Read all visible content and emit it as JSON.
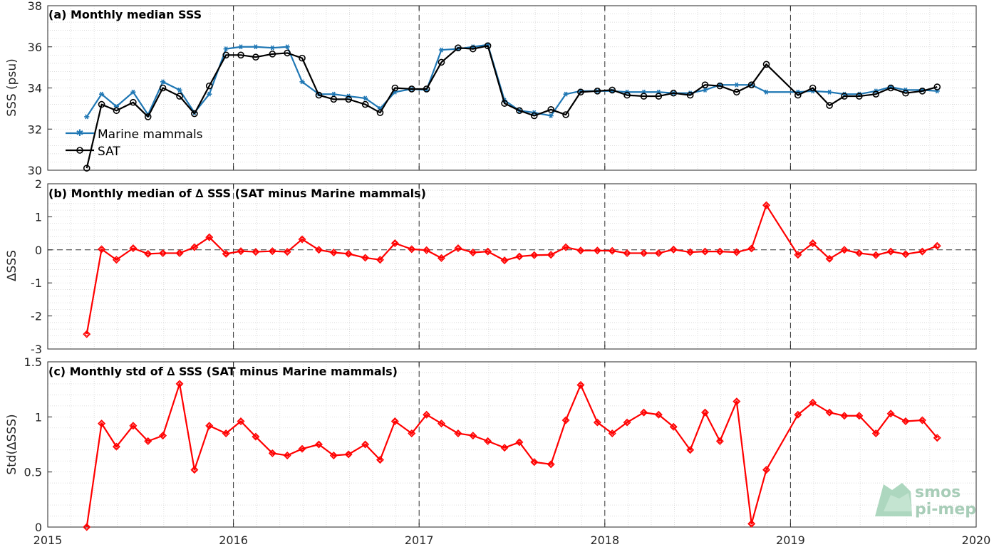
{
  "colors": {
    "marine": "#1f77b4",
    "sat": "#000000",
    "delta": "#ff0000"
  },
  "logo": {
    "line1": "smos",
    "line2": "pi-mep"
  },
  "x_ticks": [
    "2015",
    "2016",
    "2017",
    "2018",
    "2019",
    "2020"
  ],
  "chart_data": [
    {
      "type": "line",
      "title": "(a) Monthly median SSS",
      "ylabel": "SSS (psu)",
      "xlim": [
        2015,
        2020
      ],
      "ylim": [
        30,
        38
      ],
      "y_ticks": [
        "30",
        "32",
        "34",
        "36",
        "38"
      ],
      "grid": true,
      "legend_position": "lower-left",
      "x": [
        2015.21,
        2015.29,
        2015.37,
        2015.46,
        2015.54,
        2015.62,
        2015.71,
        2015.79,
        2015.87,
        2015.96,
        2016.04,
        2016.12,
        2016.21,
        2016.29,
        2016.37,
        2016.46,
        2016.54,
        2016.62,
        2016.71,
        2016.79,
        2016.87,
        2016.96,
        2017.04,
        2017.12,
        2017.21,
        2017.29,
        2017.37,
        2017.46,
        2017.54,
        2017.62,
        2017.71,
        2017.79,
        2017.87,
        2017.96,
        2018.04,
        2018.12,
        2018.21,
        2018.29,
        2018.37,
        2018.46,
        2018.54,
        2018.62,
        2018.71,
        2018.79,
        2018.87,
        2019.04,
        2019.12,
        2019.21,
        2019.29,
        2019.37,
        2019.46,
        2019.54,
        2019.62,
        2019.71,
        2019.79
      ],
      "series": [
        {
          "name": "Marine mammals",
          "values": [
            32.6,
            33.7,
            33.1,
            33.8,
            32.7,
            34.3,
            33.9,
            32.8,
            33.7,
            35.9,
            36.0,
            36.0,
            35.95,
            36.0,
            34.3,
            33.7,
            33.7,
            33.6,
            33.5,
            33.0,
            33.8,
            33.95,
            33.9,
            35.85,
            35.9,
            36.0,
            36.1,
            33.4,
            32.9,
            32.8,
            32.65,
            33.7,
            33.85,
            33.85,
            33.85,
            33.8,
            33.8,
            33.8,
            33.75,
            33.75,
            33.9,
            34.15,
            34.15,
            34.15,
            33.8,
            33.8,
            33.85,
            33.8,
            33.7,
            33.7,
            33.85,
            34.05,
            33.9,
            33.9,
            33.85
          ]
        },
        {
          "name": "SAT",
          "values": [
            30.1,
            33.2,
            32.9,
            33.3,
            32.6,
            34.0,
            33.6,
            32.75,
            34.1,
            35.6,
            35.6,
            35.5,
            35.65,
            35.7,
            35.45,
            33.65,
            33.45,
            33.45,
            33.2,
            32.8,
            34.0,
            33.95,
            33.95,
            35.25,
            35.95,
            35.9,
            36.05,
            33.25,
            32.9,
            32.65,
            32.95,
            32.7,
            33.8,
            33.85,
            33.9,
            33.65,
            33.6,
            33.6,
            33.75,
            33.65,
            34.15,
            34.1,
            33.8,
            34.15,
            35.15,
            33.65,
            34.0,
            33.15,
            33.6,
            33.6,
            33.7,
            34.0,
            33.75,
            33.85,
            34.05
          ]
        }
      ]
    },
    {
      "type": "line",
      "title": "(b) Monthly median of ∆ SSS (SAT minus Marine mammals)",
      "ylabel": "∆SSS",
      "xlim": [
        2015,
        2020
      ],
      "ylim": [
        -3,
        2
      ],
      "y_ticks": [
        "-3",
        "-2",
        "-1",
        "0",
        "1",
        "2"
      ],
      "grid": true,
      "reference_line": 0,
      "x": [
        2015.21,
        2015.29,
        2015.37,
        2015.46,
        2015.54,
        2015.62,
        2015.71,
        2015.79,
        2015.87,
        2015.96,
        2016.04,
        2016.12,
        2016.21,
        2016.29,
        2016.37,
        2016.46,
        2016.54,
        2016.62,
        2016.71,
        2016.79,
        2016.87,
        2016.96,
        2017.04,
        2017.12,
        2017.21,
        2017.29,
        2017.37,
        2017.46,
        2017.54,
        2017.62,
        2017.71,
        2017.79,
        2017.87,
        2017.96,
        2018.04,
        2018.12,
        2018.21,
        2018.29,
        2018.37,
        2018.46,
        2018.54,
        2018.62,
        2018.71,
        2018.79,
        2018.87,
        2019.04,
        2019.12,
        2019.21,
        2019.29,
        2019.37,
        2019.46,
        2019.54,
        2019.62,
        2019.71,
        2019.79
      ],
      "series": [
        {
          "name": "",
          "values": [
            -2.55,
            0.02,
            -0.3,
            0.05,
            -0.12,
            -0.1,
            -0.1,
            0.08,
            0.38,
            -0.12,
            -0.04,
            -0.06,
            -0.04,
            -0.06,
            0.32,
            0.0,
            -0.08,
            -0.12,
            -0.24,
            -0.3,
            0.2,
            0.02,
            -0.01,
            -0.25,
            0.05,
            -0.08,
            -0.05,
            -0.32,
            -0.2,
            -0.16,
            -0.15,
            0.08,
            -0.02,
            -0.02,
            -0.03,
            -0.1,
            -0.1,
            -0.1,
            0.01,
            -0.07,
            -0.05,
            -0.05,
            -0.07,
            0.04,
            1.35,
            -0.15,
            0.2,
            -0.27,
            0.0,
            -0.1,
            -0.16,
            -0.05,
            -0.13,
            -0.05,
            0.12
          ]
        }
      ]
    },
    {
      "type": "line",
      "title": "(c) Monthly std of ∆ SSS (SAT minus Marine mammals)",
      "ylabel": "Std(∆SSS)",
      "xlim": [
        2015,
        2020
      ],
      "ylim": [
        0,
        1.5
      ],
      "y_ticks": [
        "0",
        "0.5",
        "1",
        "1.5"
      ],
      "grid": true,
      "x": [
        2015.21,
        2015.29,
        2015.37,
        2015.46,
        2015.54,
        2015.62,
        2015.71,
        2015.79,
        2015.87,
        2015.96,
        2016.04,
        2016.12,
        2016.21,
        2016.29,
        2016.37,
        2016.46,
        2016.54,
        2016.62,
        2016.71,
        2016.79,
        2016.87,
        2016.96,
        2017.04,
        2017.12,
        2017.21,
        2017.29,
        2017.37,
        2017.46,
        2017.54,
        2017.62,
        2017.71,
        2017.79,
        2017.87,
        2017.96,
        2018.04,
        2018.12,
        2018.21,
        2018.29,
        2018.37,
        2018.46,
        2018.54,
        2018.62,
        2018.71,
        2018.79,
        2018.87,
        2019.04,
        2019.12,
        2019.21,
        2019.29,
        2019.37,
        2019.46,
        2019.54,
        2019.62,
        2019.71,
        2019.79
      ],
      "series": [
        {
          "name": "",
          "values": [
            0.0,
            0.94,
            0.73,
            0.92,
            0.78,
            0.83,
            1.3,
            0.52,
            0.92,
            0.85,
            0.96,
            0.82,
            0.67,
            0.65,
            0.71,
            0.75,
            0.65,
            0.66,
            0.75,
            0.61,
            0.96,
            0.85,
            1.02,
            0.94,
            0.85,
            0.83,
            0.78,
            0.72,
            0.77,
            0.59,
            0.57,
            0.97,
            1.29,
            0.95,
            0.85,
            0.95,
            1.04,
            1.02,
            0.91,
            0.7,
            1.04,
            0.78,
            1.14,
            0.03,
            0.52,
            1.02,
            1.13,
            1.04,
            1.01,
            1.01,
            0.85,
            1.03,
            0.96,
            0.97,
            0.81
          ]
        }
      ]
    }
  ]
}
